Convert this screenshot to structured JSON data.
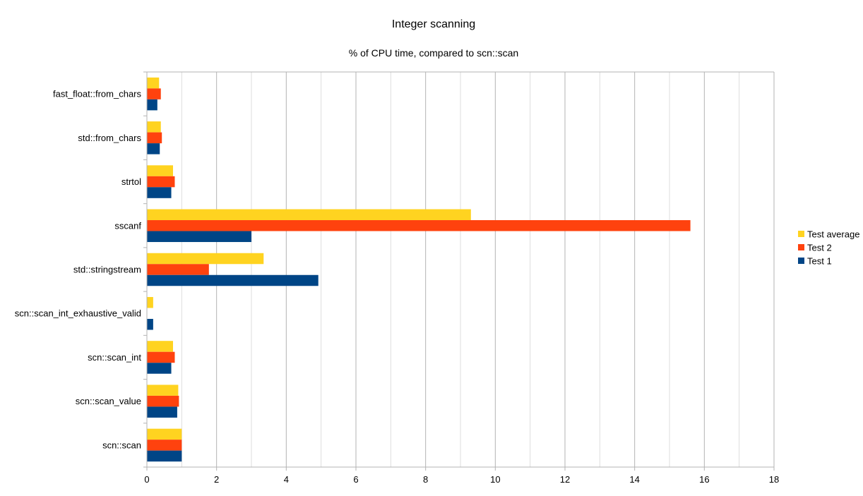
{
  "chart_data": {
    "type": "bar",
    "orientation": "horizontal",
    "title": "Integer scanning",
    "subtitle": "% of CPU time, compared to scn::scan",
    "xlabel": "",
    "ylabel": "",
    "xlim": [
      0,
      18
    ],
    "x_ticks": [
      0,
      2,
      4,
      6,
      8,
      10,
      12,
      14,
      16,
      18
    ],
    "grid": "vertical",
    "legend_position": "right",
    "categories": [
      "fast_float::from_chars",
      "std::from_chars",
      "strtol",
      "sscanf",
      "std::stringstream",
      "scn::scan_int_exhaustive_valid",
      "scn::scan_int",
      "scn::scan_value",
      "scn::scan"
    ],
    "series": [
      {
        "name": "Test average",
        "color": "#ffd320",
        "values": [
          0.35,
          0.4,
          0.75,
          9.3,
          3.35,
          0.18,
          0.75,
          0.9,
          1.0
        ]
      },
      {
        "name": "Test 2",
        "color": "#ff420e",
        "values": [
          0.4,
          0.43,
          0.8,
          15.6,
          1.78,
          0.0,
          0.8,
          0.92,
          1.0
        ]
      },
      {
        "name": "Test 1",
        "color": "#004586",
        "values": [
          0.3,
          0.37,
          0.7,
          3.0,
          4.92,
          0.18,
          0.7,
          0.87,
          1.0
        ]
      }
    ]
  }
}
